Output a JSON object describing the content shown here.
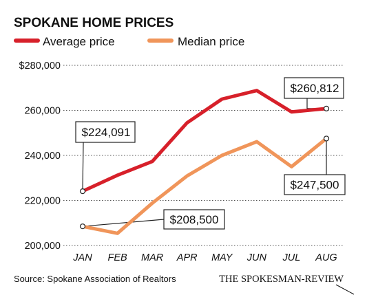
{
  "chart_data": {
    "type": "line",
    "title": "SPOKANE HOME PRICES",
    "categories": [
      "JAN",
      "FEB",
      "MAR",
      "APR",
      "MAY",
      "JUN",
      "JUL",
      "AUG"
    ],
    "series": [
      {
        "name": "Average price",
        "color": "#d7202a",
        "values": [
          224091,
          231200,
          237300,
          254500,
          265000,
          268800,
          259300,
          260812
        ]
      },
      {
        "name": "Median price",
        "color": "#f0955a",
        "values": [
          208500,
          205400,
          218800,
          230900,
          240000,
          246100,
          235000,
          247500
        ]
      }
    ],
    "ylim": [
      200000,
      280000
    ],
    "yticks": [
      {
        "value": 280000,
        "label": "$280,000"
      },
      {
        "value": 260000,
        "label": "260,000"
      },
      {
        "value": 240000,
        "label": "240,000"
      },
      {
        "value": 220000,
        "label": "220,000"
      },
      {
        "value": 200000,
        "label": "200,000"
      }
    ],
    "grid": true,
    "legend": "top-left",
    "callouts": [
      {
        "series": 0,
        "index": 0,
        "label": "$224,091"
      },
      {
        "series": 0,
        "index": 7,
        "label": "$260,812"
      },
      {
        "series": 1,
        "index": 0,
        "label": "$208,500"
      },
      {
        "series": 1,
        "index": 7,
        "label": "$247,500"
      }
    ],
    "source": "Source: Spokane Association of Realtors",
    "credit": "THE SPOKESMAN-REVIEW"
  }
}
